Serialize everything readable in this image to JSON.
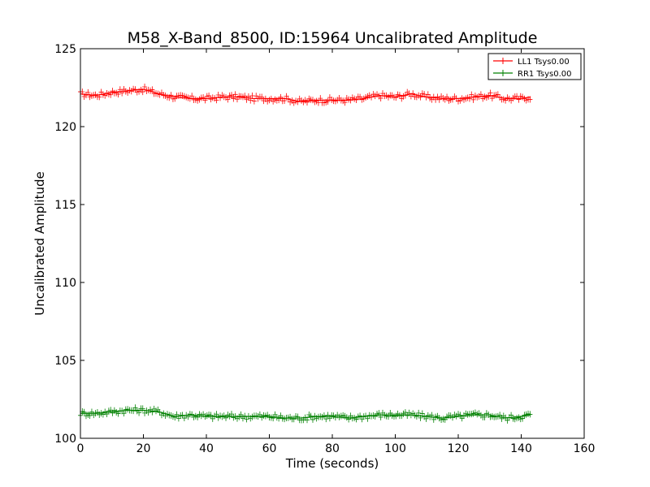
{
  "chart_data": {
    "type": "line",
    "title": "M58_X-Band_8500, ID:15964 Uncalibrated Amplitude",
    "xlabel": "Time (seconds)",
    "ylabel": "Uncalibrated Amplitude",
    "xlim": [
      0,
      160
    ],
    "ylim": [
      100,
      125
    ],
    "xticks": [
      0,
      20,
      40,
      60,
      80,
      100,
      120,
      140,
      160
    ],
    "yticks": [
      100,
      105,
      110,
      115,
      120,
      125
    ],
    "grid": false,
    "legend_position": "top-right",
    "marker": "+",
    "series": [
      {
        "name": "LL1 Tsys0.00",
        "color": "#ff0000",
        "x": [
          0,
          5,
          10,
          15,
          20,
          25,
          30,
          35,
          40,
          45,
          50,
          55,
          60,
          65,
          70,
          75,
          80,
          85,
          90,
          95,
          100,
          105,
          110,
          115,
          120,
          125,
          130,
          135,
          140,
          143
        ],
        "values": [
          122.1,
          122.0,
          122.2,
          122.3,
          122.4,
          122.1,
          121.9,
          121.8,
          121.8,
          121.9,
          121.9,
          121.8,
          121.8,
          121.8,
          121.6,
          121.7,
          121.7,
          121.7,
          121.8,
          122.0,
          121.9,
          122.1,
          121.9,
          121.8,
          121.8,
          121.9,
          122.0,
          121.8,
          121.8,
          121.9
        ]
      },
      {
        "name": "RR1 Tsys0.00",
        "color": "#008000",
        "x": [
          0,
          5,
          10,
          15,
          20,
          25,
          30,
          35,
          40,
          45,
          50,
          55,
          60,
          65,
          70,
          75,
          80,
          85,
          90,
          95,
          100,
          105,
          110,
          115,
          120,
          125,
          130,
          135,
          140,
          143
        ],
        "values": [
          101.6,
          101.6,
          101.7,
          101.8,
          101.8,
          101.7,
          101.4,
          101.5,
          101.4,
          101.4,
          101.4,
          101.4,
          101.4,
          101.3,
          101.3,
          101.4,
          101.4,
          101.3,
          101.4,
          101.5,
          101.5,
          101.5,
          101.4,
          101.3,
          101.4,
          101.5,
          101.5,
          101.3,
          101.4,
          101.5
        ]
      }
    ]
  }
}
